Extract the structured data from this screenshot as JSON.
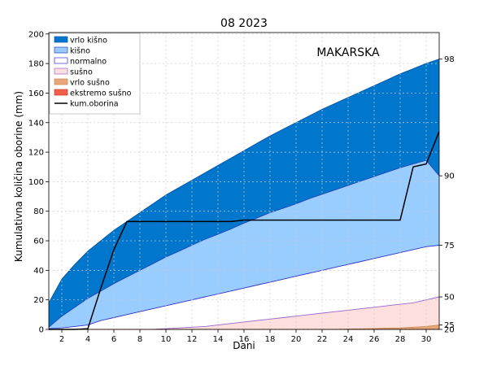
{
  "chart_data": {
    "type": "area",
    "title": "08 2023",
    "annotation": "MAKARSKA",
    "xlabel": "Dani",
    "ylabel": "Kumulativna količina oborine (mm)",
    "xlim": [
      1,
      31
    ],
    "ylim": [
      0,
      201
    ],
    "xticks": [
      2,
      4,
      6,
      8,
      10,
      12,
      14,
      16,
      18,
      20,
      22,
      24,
      26,
      28,
      30
    ],
    "yticks": [
      0,
      20,
      40,
      60,
      80,
      100,
      120,
      140,
      160,
      180,
      200
    ],
    "grid": true,
    "legend_position": "top-left",
    "percentile_axis": {
      "side": "right",
      "labels": [
        "98",
        "90",
        "75",
        "50",
        "25",
        "20"
      ],
      "values_at_day_31": [
        183,
        104,
        57,
        22,
        3,
        0
      ]
    },
    "x": [
      1,
      2,
      3,
      4,
      5,
      6,
      7,
      8,
      9,
      10,
      11,
      12,
      13,
      14,
      15,
      16,
      17,
      18,
      19,
      20,
      21,
      22,
      23,
      24,
      25,
      26,
      27,
      28,
      29,
      30,
      31
    ],
    "bands": [
      {
        "name": "vrlo kišno",
        "color": "#0077cc",
        "edge": "#0055aa",
        "lower": [
          1.5,
          9,
          15,
          21,
          26,
          31,
          35.5,
          40,
          44.5,
          49,
          53,
          57,
          61,
          64.5,
          68,
          72,
          75.5,
          79,
          82,
          85,
          88.5,
          91.5,
          94.5,
          97.5,
          100.5,
          103.5,
          106.5,
          109.5,
          112,
          114.5,
          104
        ],
        "upper": [
          18,
          34,
          44,
          53,
          60,
          67,
          73,
          79,
          85,
          91,
          96,
          101,
          106,
          111,
          116,
          121,
          126,
          131,
          135.5,
          140,
          144.5,
          149,
          153,
          157,
          161,
          165,
          169,
          173,
          176.5,
          180,
          183
        ]
      },
      {
        "name": "kišno",
        "color": "#99ccff",
        "edge": "#2244bb",
        "lower": [
          0.5,
          1,
          2,
          3,
          6,
          8,
          10,
          12,
          14,
          16,
          18,
          20,
          22,
          24,
          26,
          28,
          30,
          32,
          34,
          36,
          38,
          40,
          42,
          44,
          46,
          48,
          50,
          52,
          54,
          56,
          57
        ],
        "upper": [
          1.5,
          9,
          15,
          21,
          26,
          31,
          35.5,
          40,
          44.5,
          49,
          53,
          57,
          61,
          64.5,
          68,
          72,
          75.5,
          79,
          82,
          85,
          88.5,
          91.5,
          94.5,
          97.5,
          100.5,
          103.5,
          106.5,
          109.5,
          112,
          114.5,
          104
        ]
      },
      {
        "name": "normalno",
        "color": "#ffffff",
        "edge": "#3333cc",
        "lower": [
          0,
          0,
          0,
          0,
          0,
          0,
          0,
          0,
          0,
          0.5,
          1,
          1.5,
          2,
          3,
          4,
          5,
          6,
          7,
          8,
          9,
          10,
          11,
          12,
          13,
          14,
          15,
          16,
          17,
          18,
          20,
          22
        ],
        "upper": [
          0.5,
          1,
          2,
          3,
          6,
          8,
          10,
          12,
          14,
          16,
          18,
          20,
          22,
          24,
          26,
          28,
          30,
          32,
          34,
          36,
          38,
          40,
          42,
          44,
          46,
          48,
          50,
          52,
          54,
          56,
          57
        ]
      },
      {
        "name": "sušno",
        "color": "#fde0dd",
        "edge": "#9966cc",
        "lower": [
          0,
          0,
          0,
          0,
          0,
          0,
          0,
          0,
          0,
          0,
          0,
          0,
          0,
          0,
          0,
          0,
          0,
          0,
          0,
          0,
          0,
          0,
          0,
          0.2,
          0.4,
          0.6,
          0.8,
          1,
          1.5,
          2,
          3
        ],
        "upper": [
          0,
          0,
          0,
          0,
          0,
          0,
          0,
          0,
          0,
          0.5,
          1,
          1.5,
          2,
          3,
          4,
          5,
          6,
          7,
          8,
          9,
          10,
          11,
          12,
          13,
          14,
          15,
          16,
          17,
          18,
          20,
          22
        ]
      },
      {
        "name": "vrlo sušno",
        "color": "#e8a77a",
        "edge": "#cc8855",
        "lower": [
          0,
          0,
          0,
          0,
          0,
          0,
          0,
          0,
          0,
          0,
          0,
          0,
          0,
          0,
          0,
          0,
          0,
          0,
          0,
          0,
          0,
          0,
          0,
          0,
          0,
          0,
          0,
          0,
          0,
          0,
          0
        ],
        "upper": [
          0,
          0,
          0,
          0,
          0,
          0,
          0,
          0,
          0,
          0,
          0,
          0,
          0,
          0,
          0,
          0,
          0,
          0,
          0,
          0,
          0,
          0,
          0,
          0.2,
          0.4,
          0.6,
          0.8,
          1,
          1.5,
          2,
          3
        ]
      },
      {
        "name": "ekstremo sušno",
        "color": "#f06048",
        "edge": "#cc3322",
        "lower": [
          0,
          0,
          0,
          0,
          0,
          0,
          0,
          0,
          0,
          0,
          0,
          0,
          0,
          0,
          0,
          0,
          0,
          0,
          0,
          0,
          0,
          0,
          0,
          0,
          0,
          0,
          0,
          0,
          0,
          0,
          0
        ],
        "upper": [
          0,
          0,
          0,
          0,
          0,
          0,
          0,
          0,
          0,
          0,
          0,
          0,
          0,
          0,
          0,
          0,
          0,
          0,
          0,
          0,
          0,
          0,
          0,
          0,
          0,
          0,
          0,
          0,
          0,
          0,
          0
        ]
      }
    ],
    "series": [
      {
        "name": "kum.oborina",
        "color": "#000000",
        "values": [
          0,
          0,
          0,
          0.5,
          28,
          54,
          73,
          73,
          73,
          73,
          73,
          73,
          73,
          73,
          73,
          74,
          74,
          74,
          74,
          74,
          74,
          74,
          74,
          74,
          74,
          74,
          74,
          74,
          110,
          112,
          134
        ]
      }
    ]
  }
}
